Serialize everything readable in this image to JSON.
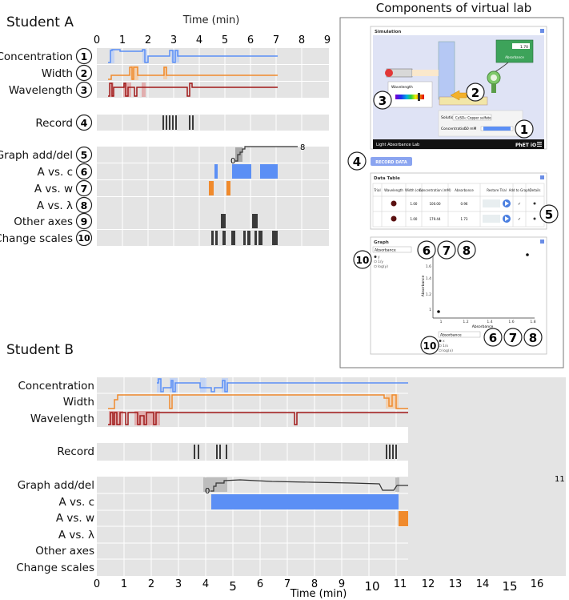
{
  "studentA": {
    "title": "Student A",
    "axis_label": "Time (min)",
    "ticks": [
      "0",
      "1",
      "2",
      "3",
      "4",
      "5",
      "6",
      "7",
      "8",
      "9"
    ],
    "rows": [
      {
        "label": "Concentration",
        "num": "1"
      },
      {
        "label": "Width",
        "num": "2"
      },
      {
        "label": "Wavelength",
        "num": "3"
      },
      {
        "label": "Record",
        "num": "4"
      },
      {
        "label": "Graph add/del",
        "num": "5"
      },
      {
        "label": "A vs. c",
        "num": "6"
      },
      {
        "label": "A vs. w",
        "num": "7"
      },
      {
        "label": "A vs. λ",
        "num": "8"
      },
      {
        "label": "Other axes",
        "num": "9"
      },
      {
        "label": "Change scales",
        "num": "10"
      }
    ],
    "graph_count": "8",
    "graph_zero": "0"
  },
  "studentB": {
    "title": "Student B",
    "axis_label": "Time (min)",
    "ticks": [
      "0",
      "1",
      "2",
      "3",
      "4",
      "5",
      "6",
      "7",
      "8",
      "9",
      "10",
      "11",
      "12",
      "13",
      "14",
      "15",
      "16"
    ],
    "rows": [
      {
        "label": "Concentration"
      },
      {
        "label": "Width"
      },
      {
        "label": "Wavelength"
      },
      {
        "label": "Record"
      },
      {
        "label": "Graph add/del"
      },
      {
        "label": "A vs. c"
      },
      {
        "label": "A vs. w"
      },
      {
        "label": "A vs. λ"
      },
      {
        "label": "Other axes"
      },
      {
        "label": "Change scales"
      }
    ],
    "graph_count": "11",
    "graph_zero": "0"
  },
  "lab": {
    "title": "Components of virtual lab",
    "sim_header": "Simulation",
    "meter_label": "Absorbance",
    "meter_value": "1.70",
    "wavelength_label": "Wavelength",
    "solution_label": "Solution",
    "solution_value": "CuSO₄: Copper sulfate",
    "concentration_label": "Concentration",
    "concentration_value": "50 mM",
    "footer_title": "Light Absorbance Lab",
    "footer_brand": "PhET iO",
    "record_button": "RECORD DATA",
    "table_header": "Data Table",
    "table_cols": [
      "Trial",
      "Wavelength",
      "Width (cm)",
      "Concentration (mM)",
      "Absorbance",
      "Restore Trial",
      "Add to Graph",
      "Details"
    ],
    "table_rows": [
      {
        "width": "1.00",
        "conc": "100.00",
        "abs": "0.96"
      },
      {
        "width": "1.00",
        "conc": "179.44",
        "abs": "1.73"
      }
    ],
    "graph_header": "Graph",
    "y_select": "Absorbance",
    "x_select": "Absorbance",
    "options": [
      "y",
      "1/y",
      "log(y)"
    ],
    "options_x": [
      "x",
      "1/x",
      "log(x)"
    ],
    "y_axis_title": "Absorbance",
    "x_axis_title": "Absorbance",
    "y_ticks": [
      "1.6",
      "1.4",
      "1.2",
      "1"
    ],
    "x_ticks": [
      "1",
      "1.2",
      "1.4",
      "1.6",
      "1.8"
    ],
    "callouts": [
      "1",
      "2",
      "3",
      "4",
      "5",
      "6",
      "7",
      "8",
      "10"
    ]
  },
  "colors": {
    "blue": "#5b8ff5",
    "orange": "#f08a2c",
    "red": "#a01818",
    "gray_row": "#e4e4e4",
    "dark_tick": "#3a3a3a"
  }
}
